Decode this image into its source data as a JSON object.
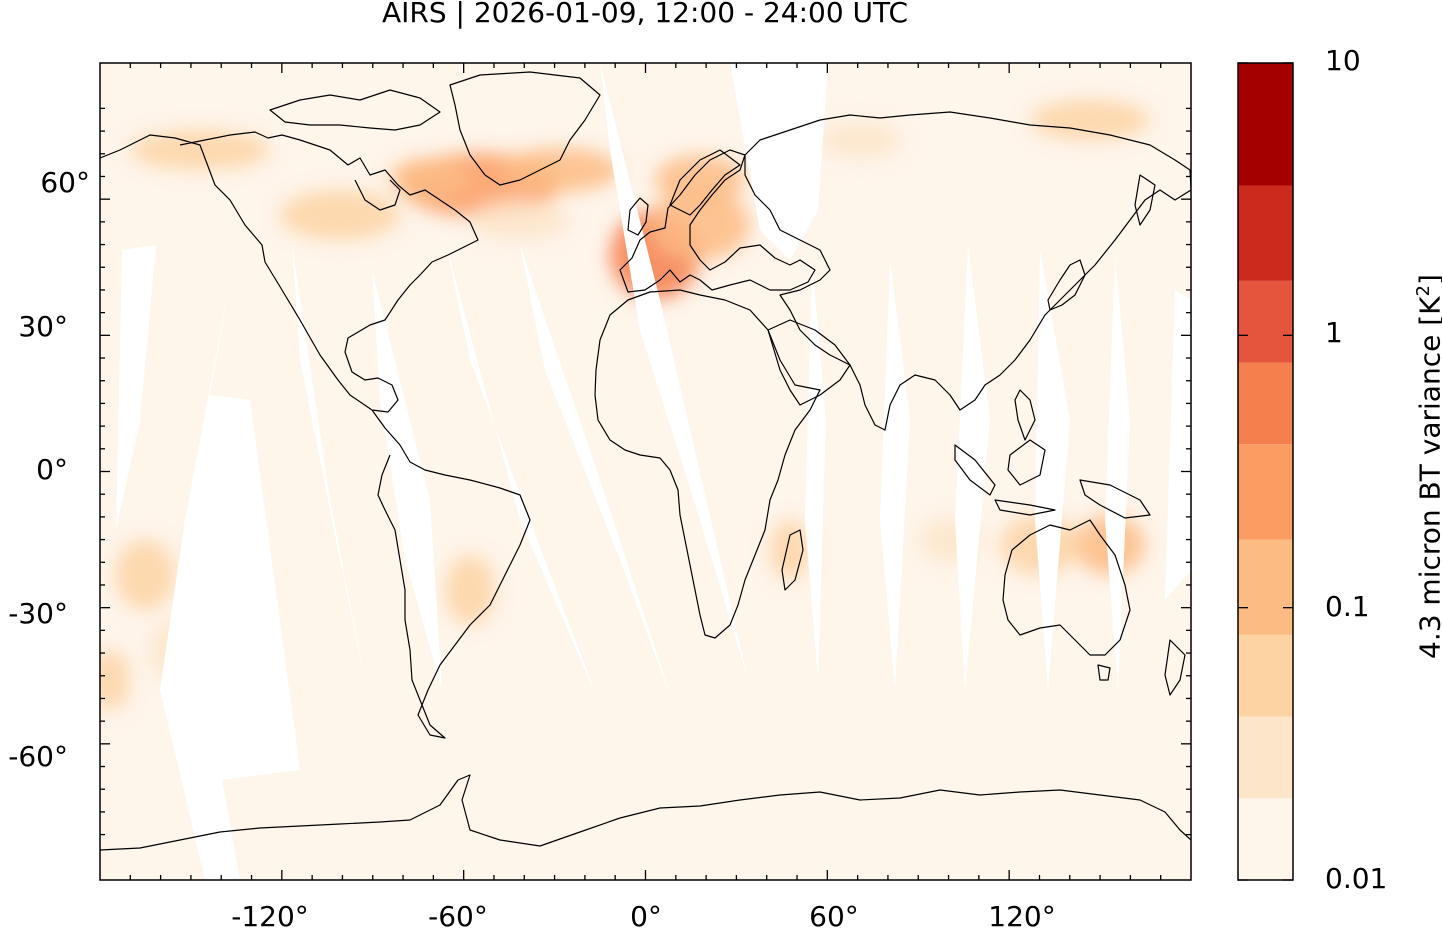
{
  "title": "AIRS | 2026-01-09, 12:00 - 24:00 UTC",
  "map": {
    "lon_range": [
      -180,
      180
    ],
    "lat_range": [
      -90,
      90
    ],
    "lon_ticks": [
      "-120°",
      "-60°",
      "0°",
      "60°",
      "120°"
    ],
    "lat_ticks": [
      "60°",
      "30°",
      "0°",
      "-30°",
      "-60°"
    ],
    "background_color": "#fef5eb",
    "gap_color": "#ffffff",
    "coastline_color": "#000000"
  },
  "colorbar": {
    "label": "4.3 micron BT variance [K",
    "label_sup": "2",
    "label_close": "]",
    "scale": "log",
    "range": [
      0.01,
      10
    ],
    "tick_labels": [
      "10",
      "1",
      "0.1",
      "0.01"
    ],
    "colors": [
      "#fef5eb",
      "#fde5ca",
      "#fdd3a4",
      "#fdbb84",
      "#fc9c62",
      "#f67f4e",
      "#e5543c",
      "#cd2a1e",
      "#a50000"
    ]
  },
  "chart_data": {
    "type": "heatmap",
    "title": "AIRS | 2026-01-09, 12:00 - 24:00 UTC",
    "xlabel": "",
    "ylabel": "",
    "xlim": [
      -180,
      180
    ],
    "ylim": [
      -90,
      90
    ],
    "colorbar_label": "4.3 micron BT variance [K²]",
    "colorbar_scale": "log",
    "colorbar_range": [
      0.01,
      10
    ],
    "hotspots": [
      {
        "lon": -50,
        "lat": 60,
        "variance": 0.4
      },
      {
        "lon": -35,
        "lat": 62,
        "variance": 0.3
      },
      {
        "lon": 0,
        "lat": 47,
        "variance": 0.5
      },
      {
        "lon": 5,
        "lat": 50,
        "variance": 0.35
      },
      {
        "lon": 20,
        "lat": 62,
        "variance": 0.25
      },
      {
        "lon": -105,
        "lat": 55,
        "variance": 0.2
      },
      {
        "lon": -140,
        "lat": 65,
        "variance": 0.15
      },
      {
        "lon": -160,
        "lat": -25,
        "variance": 0.12
      },
      {
        "lon": -60,
        "lat": -28,
        "variance": 0.15
      },
      {
        "lon": 135,
        "lat": -20,
        "variance": 0.2
      },
      {
        "lon": 148,
        "lat": -17,
        "variance": 0.25
      },
      {
        "lon": 40,
        "lat": -20,
        "variance": 0.12
      },
      {
        "lon": 140,
        "lat": 80,
        "variance": 0.08
      }
    ]
  }
}
